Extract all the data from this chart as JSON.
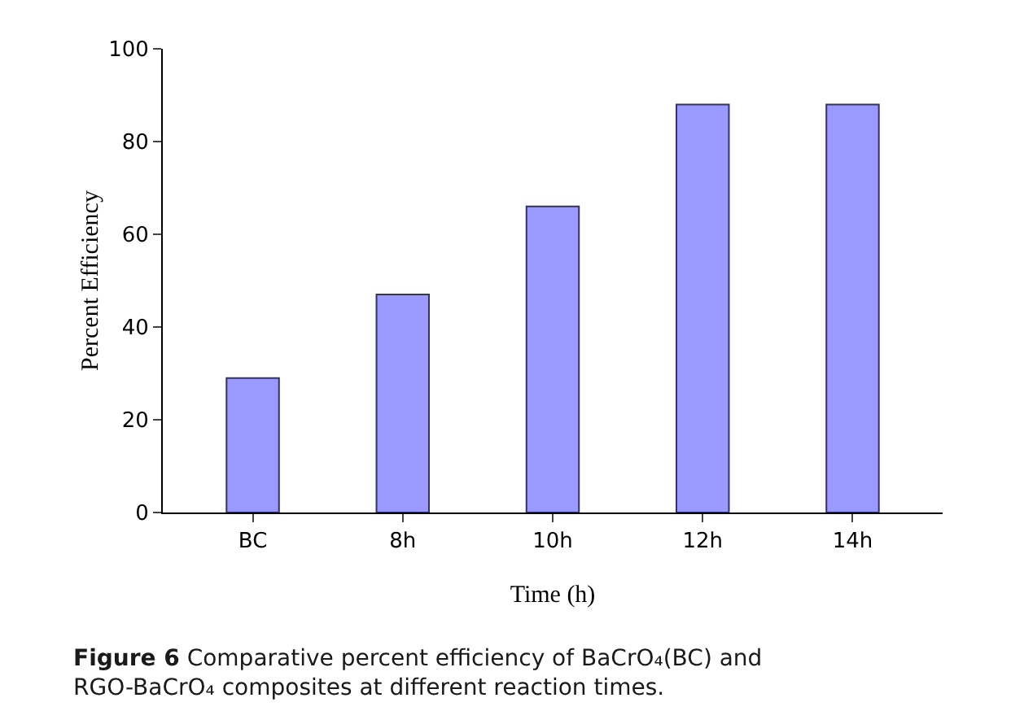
{
  "chart_data": {
    "type": "bar",
    "categories": [
      "BC",
      "8h",
      "10h",
      "12h",
      "14h"
    ],
    "values": [
      29,
      47,
      66,
      88,
      88
    ],
    "color": "#9999ff",
    "ylim": [
      0,
      100
    ],
    "yticks": [
      0,
      20,
      40,
      60,
      80,
      100
    ],
    "grid": false,
    "xlabel": "Time (h)",
    "ylabel": "Percent Efficiency",
    "annotations": [
      "Figure 6 Comparative percent efficiency of BaCrO₄(BC) and RGO-BaCrO₄ composites at different reaction times."
    ]
  }
}
